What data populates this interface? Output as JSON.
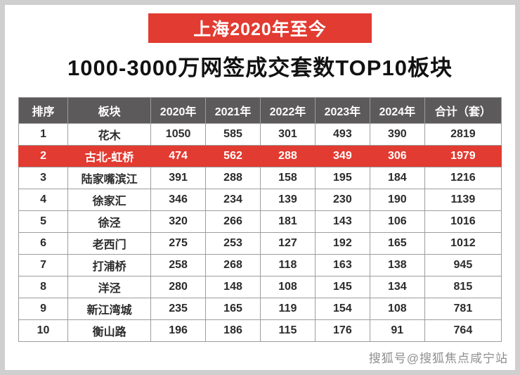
{
  "banner": {
    "label": "上海2020年至今"
  },
  "title": "1000-3000万网签成交套数TOP10板块",
  "watermark": "搜狐号@搜狐焦点咸宁站",
  "colors": {
    "accent_red": "#e23b31",
    "header_bg": "#5c5a5a",
    "cell_border": "#9d9d9d",
    "frame_gray": "#cfcfcf"
  },
  "chart_data": {
    "type": "table",
    "title": "1000-3000万网签成交套数TOP10板块",
    "subtitle": "上海2020年至今",
    "columns": [
      "排序",
      "板块",
      "2020年",
      "2021年",
      "2022年",
      "2023年",
      "2024年",
      "合计（套）"
    ],
    "rows": [
      [
        "1",
        "花木",
        "1050",
        "585",
        "301",
        "493",
        "390",
        "2819"
      ],
      [
        "2",
        "古北-虹桥",
        "474",
        "562",
        "288",
        "349",
        "306",
        "1979"
      ],
      [
        "3",
        "陆家嘴滨江",
        "391",
        "288",
        "158",
        "195",
        "184",
        "1216"
      ],
      [
        "4",
        "徐家汇",
        "346",
        "234",
        "139",
        "230",
        "190",
        "1139"
      ],
      [
        "5",
        "徐泾",
        "320",
        "266",
        "181",
        "143",
        "106",
        "1016"
      ],
      [
        "6",
        "老西门",
        "275",
        "253",
        "127",
        "192",
        "165",
        "1012"
      ],
      [
        "7",
        "打浦桥",
        "258",
        "268",
        "118",
        "163",
        "138",
        "945"
      ],
      [
        "8",
        "洋泾",
        "280",
        "148",
        "108",
        "145",
        "134",
        "815"
      ],
      [
        "9",
        "新江湾城",
        "235",
        "165",
        "119",
        "154",
        "108",
        "781"
      ],
      [
        "10",
        "衡山路",
        "196",
        "186",
        "115",
        "176",
        "91",
        "764"
      ]
    ],
    "highlighted_row_index": 1,
    "legend_position": "none",
    "grid": true
  }
}
